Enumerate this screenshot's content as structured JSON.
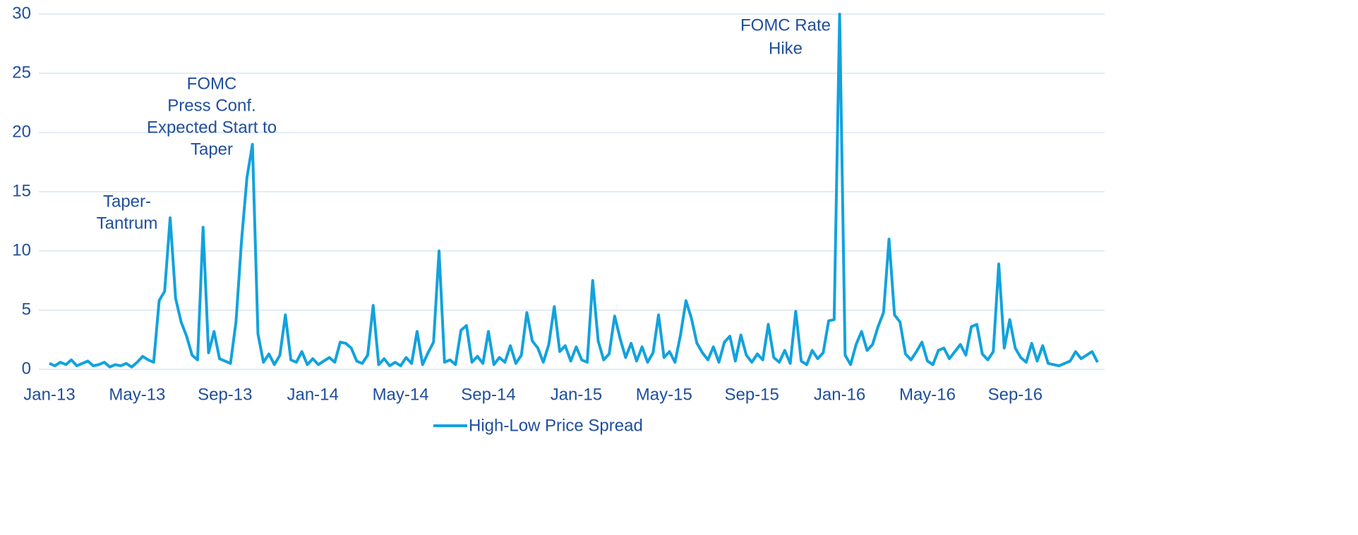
{
  "chart_data": {
    "type": "line",
    "categories": [
      "Jan-13",
      null,
      null,
      null,
      null,
      null,
      null,
      null,
      null,
      null,
      null,
      null,
      null,
      null,
      null,
      null,
      "May-13",
      null,
      null,
      null,
      null,
      null,
      null,
      null,
      null,
      null,
      null,
      null,
      null,
      null,
      null,
      null,
      "Sep-13",
      null,
      null,
      null,
      null,
      null,
      null,
      null,
      null,
      null,
      null,
      null,
      null,
      null,
      null,
      null,
      "Jan-14",
      null,
      null,
      null,
      null,
      null,
      null,
      null,
      null,
      null,
      null,
      null,
      null,
      null,
      null,
      null,
      "May-14",
      null,
      null,
      null,
      null,
      null,
      null,
      null,
      null,
      null,
      null,
      null,
      null,
      null,
      null,
      null,
      "Sep-14",
      null,
      null,
      null,
      null,
      null,
      null,
      null,
      null,
      null,
      null,
      null,
      null,
      null,
      null,
      null,
      "Jan-15",
      null,
      null,
      null,
      null,
      null,
      null,
      null,
      null,
      null,
      null,
      null,
      null,
      null,
      null,
      null,
      "May-15",
      null,
      null,
      null,
      null,
      null,
      null,
      null,
      null,
      null,
      null,
      null,
      null,
      null,
      null,
      null,
      "Sep-15",
      null,
      null,
      null,
      null,
      null,
      null,
      null,
      null,
      null,
      null,
      null,
      null,
      null,
      null,
      null,
      "Jan-16",
      null,
      null,
      null,
      null,
      null,
      null,
      null,
      null,
      null,
      null,
      null,
      null,
      null,
      null,
      null,
      "May-16",
      null,
      null,
      null,
      null,
      null,
      null,
      null,
      null,
      null,
      null,
      null,
      null,
      null,
      null,
      null,
      "Sep-16",
      null,
      null,
      null,
      null,
      null,
      null,
      null,
      null,
      null,
      null,
      null,
      null,
      null,
      null,
      null
    ],
    "series": [
      {
        "name": "High-Low Price Spread",
        "color": "#12a2dd",
        "values": [
          0.5,
          0.3,
          0.6,
          0.4,
          0.8,
          0.3,
          0.5,
          0.7,
          0.3,
          0.4,
          0.6,
          0.2,
          0.4,
          0.3,
          0.5,
          0.2,
          0.6,
          1.1,
          0.8,
          0.6,
          5.8,
          6.6,
          12.8,
          6.0,
          4.0,
          2.8,
          1.2,
          0.8,
          12.0,
          1.4,
          3.2,
          0.9,
          0.7,
          0.5,
          4.0,
          10.8,
          16.2,
          19.0,
          3.0,
          0.6,
          1.3,
          0.4,
          1.2,
          4.6,
          0.8,
          0.6,
          1.5,
          0.4,
          0.9,
          0.4,
          0.7,
          1.0,
          0.6,
          2.3,
          2.2,
          1.8,
          0.7,
          0.5,
          1.2,
          5.4,
          0.4,
          0.9,
          0.3,
          0.6,
          0.3,
          1.0,
          0.5,
          3.2,
          0.4,
          1.4,
          2.3,
          10.0,
          0.6,
          0.8,
          0.4,
          3.3,
          3.7,
          0.6,
          1.1,
          0.5,
          3.2,
          0.4,
          1.0,
          0.6,
          2.0,
          0.5,
          1.2,
          4.8,
          2.4,
          1.8,
          0.6,
          2.1,
          5.3,
          1.5,
          2.0,
          0.7,
          1.9,
          0.8,
          0.6,
          7.5,
          2.4,
          0.8,
          1.3,
          4.5,
          2.6,
          1.0,
          2.2,
          0.7,
          1.9,
          0.6,
          1.4,
          4.6,
          1.0,
          1.5,
          0.6,
          2.9,
          5.8,
          4.3,
          2.2,
          1.4,
          0.8,
          1.9,
          0.6,
          2.3,
          2.8,
          0.7,
          2.9,
          1.2,
          0.6,
          1.3,
          0.8,
          3.8,
          1.0,
          0.6,
          1.6,
          0.5,
          4.9,
          0.7,
          0.4,
          1.6,
          0.9,
          1.4,
          4.1,
          4.2,
          30,
          1.2,
          0.4,
          2.1,
          3.2,
          1.6,
          2.1,
          3.6,
          4.8,
          11.0,
          4.6,
          4.0,
          1.3,
          0.8,
          1.5,
          2.3,
          0.7,
          0.4,
          1.6,
          1.8,
          0.9,
          1.5,
          2.1,
          1.2,
          3.6,
          3.8,
          1.3,
          0.8,
          1.5,
          8.9,
          1.8,
          4.2,
          1.8,
          1.0,
          0.6,
          2.2,
          0.7,
          2.0,
          0.5,
          0.4,
          0.3,
          0.5,
          0.7,
          1.5,
          0.9,
          1.2,
          1.5,
          0.6
        ]
      }
    ],
    "ylim": [
      0,
      30
    ],
    "yticks": [
      0,
      5,
      10,
      15,
      20,
      25,
      30
    ],
    "grid": true,
    "legend": "bottom",
    "annotations": [
      {
        "lines": [
          "Taper-",
          "Tantrum"
        ]
      },
      {
        "lines": [
          "FOMC",
          "Press Conf.",
          "Expected Start to",
          "Taper"
        ]
      },
      {
        "lines": [
          "FOMC Rate",
          "Hike"
        ]
      }
    ]
  }
}
